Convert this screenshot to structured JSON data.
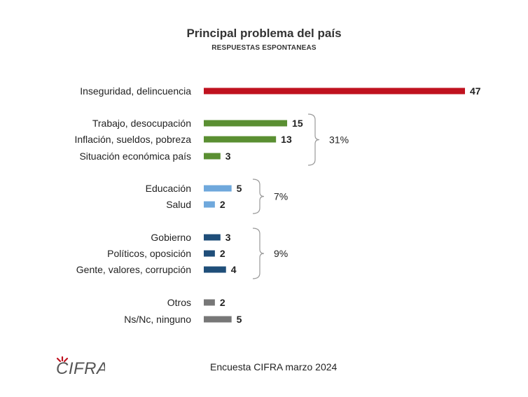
{
  "chart_data": {
    "type": "bar",
    "orientation": "horizontal",
    "title": "Principal problema del país",
    "subtitle": "RESPUESTAS ESPONTANEAS",
    "xlim": [
      0,
      47
    ],
    "grid": false,
    "categories": [
      {
        "label": "Inseguridad, delincuencia",
        "value": 47,
        "color": "#C0121F"
      },
      {
        "label": "Trabajo, desocupación",
        "value": 15,
        "color": "#5A8F32"
      },
      {
        "label": "Inflación, sueldos, pobreza",
        "value": 13,
        "color": "#5A8F32"
      },
      {
        "label": "Situación económica país",
        "value": 3,
        "color": "#5A8F32"
      },
      {
        "label": "Educación",
        "value": 5,
        "color": "#6FA8DC"
      },
      {
        "label": "Salud",
        "value": 2,
        "color": "#6FA8DC"
      },
      {
        "label": "Gobierno",
        "value": 3,
        "color": "#1F4E79"
      },
      {
        "label": "Políticos, oposición",
        "value": 2,
        "color": "#1F4E79"
      },
      {
        "label": "Gente, valores, corrupción",
        "value": 4,
        "color": "#1F4E79"
      },
      {
        "label": "Otros",
        "value": 2,
        "color": "#777777"
      },
      {
        "label": "Ns/Nc, ninguno",
        "value": 5,
        "color": "#777777"
      }
    ],
    "groups": [
      {
        "label": "31%",
        "first": 1,
        "last": 3
      },
      {
        "label": "7%",
        "first": 4,
        "last": 5
      },
      {
        "label": "9%",
        "first": 6,
        "last": 8
      }
    ]
  },
  "footer": {
    "source": "Encuesta CIFRA marzo 2024",
    "logo_text": "CIFRA"
  }
}
